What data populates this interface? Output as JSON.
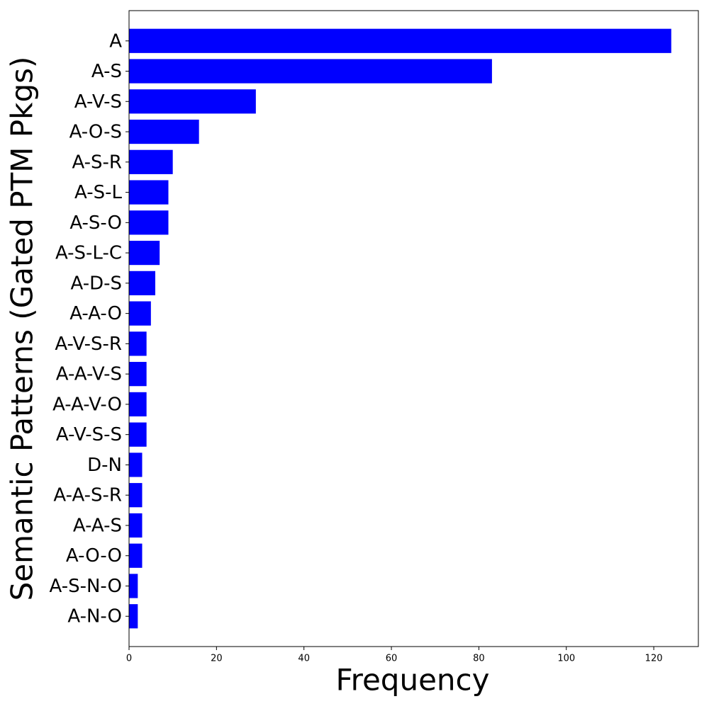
{
  "chart_data": {
    "type": "barh",
    "xlabel": "Frequency",
    "ylabel": "Semantic Patterns (Gated PTM Pkgs)",
    "categories": [
      "A",
      "A-S",
      "A-V-S",
      "A-O-S",
      "A-S-R",
      "A-S-L",
      "A-S-O",
      "A-S-L-C",
      "A-D-S",
      "A-A-O",
      "A-V-S-R",
      "A-A-V-S",
      "A-A-V-O",
      "A-V-S-S",
      "D-N",
      "A-A-S-R",
      "A-A-S",
      "A-O-O",
      "A-S-N-O",
      "A-N-O"
    ],
    "values": [
      124,
      83,
      29,
      16,
      10,
      9,
      9,
      7,
      6,
      5,
      4,
      4,
      4,
      4,
      3,
      3,
      3,
      3,
      2,
      2
    ],
    "color": "#0000ff",
    "xlim": [
      0,
      130.2
    ],
    "xticks": [
      0,
      20,
      40,
      60,
      80,
      100,
      120
    ]
  }
}
